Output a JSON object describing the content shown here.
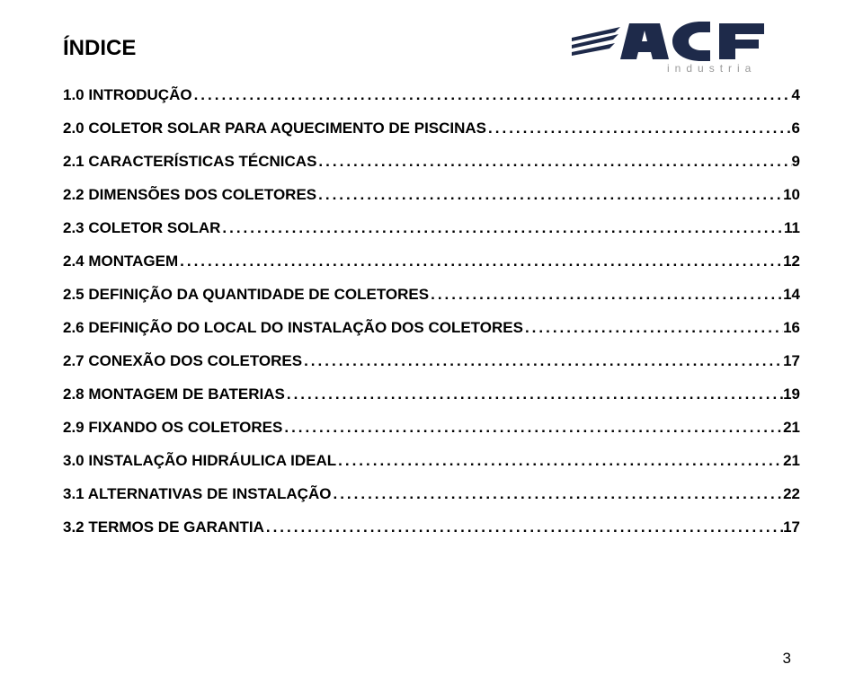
{
  "title": "ÍNDICE",
  "logo": {
    "text_main": "ACF",
    "text_sub": "i n d u s t r i a",
    "color_dark": "#1e2a4a",
    "color_grey": "#9a9a9a"
  },
  "toc": [
    {
      "label": "1.0 INTRODUÇÃO",
      "page": "4"
    },
    {
      "label": "2.0 COLETOR SOLAR PARA AQUECIMENTO DE PISCINAS",
      "page": "6"
    },
    {
      "label": "2.1 CARACTERÍSTICAS TÉCNICAS",
      "page": "9"
    },
    {
      "label": "2.2 DIMENSÕES DOS COLETORES",
      "page": "10"
    },
    {
      "label": "2.3 COLETOR SOLAR",
      "page": "11"
    },
    {
      "label": "2.4 MONTAGEM",
      "page": "12"
    },
    {
      "label": "2.5 DEFINIÇÃO DA QUANTIDADE DE COLETORES",
      "page": "14"
    },
    {
      "label": "2.6 DEFINIÇÃO DO LOCAL DO INSTALAÇÃO DOS COLETORES",
      "page": "16"
    },
    {
      "label": "2.7 CONEXÃO DOS COLETORES",
      "page": "17"
    },
    {
      "label": "2.8 MONTAGEM DE BATERIAS",
      "page": "19"
    },
    {
      "label": "2.9 FIXANDO OS COLETORES",
      "page": "21"
    },
    {
      "label": "3.0 INSTALAÇÃO HIDRÁULICA IDEAL",
      "page": "21"
    },
    {
      "label": "3.1 ALTERNATIVAS DE INSTALAÇÃO",
      "page": "22"
    },
    {
      "label": "3.2 TERMOS DE GARANTIA",
      "page": "17"
    }
  ],
  "page_number": "3"
}
